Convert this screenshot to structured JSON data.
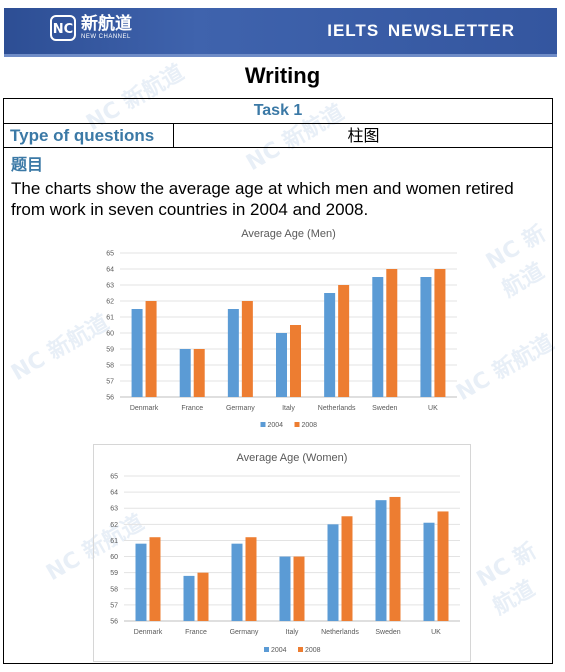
{
  "header": {
    "logo_badge": "NC",
    "logo_cn": "新航道",
    "logo_en": "NEW CHANNEL",
    "title": "IELTS NEWSLETTER"
  },
  "doc_title": "Writing",
  "task": {
    "label": "Task 1",
    "type_label": "Type of questions",
    "type_value": "柱图",
    "topic_label": "题目",
    "prompt": "The charts show the average age at which men and women retired from work in seven countries in 2004 and 2008."
  },
  "colors": {
    "series_2004": "#5b9bd5",
    "series_2008": "#ed7d31",
    "accent": "#3b79a6",
    "banner": "#34569f"
  },
  "chart_data": [
    {
      "type": "bar",
      "title": "Average Age (Men)",
      "categories": [
        "Denmark",
        "France",
        "Germany",
        "Italy",
        "Netherlands",
        "Sweden",
        "UK"
      ],
      "series": [
        {
          "name": "2004",
          "values": [
            61.5,
            59,
            61.5,
            60,
            62.5,
            63.5,
            63.5
          ]
        },
        {
          "name": "2008",
          "values": [
            62,
            59,
            62,
            60.5,
            63,
            64,
            64
          ]
        }
      ],
      "ylim": [
        56,
        65
      ],
      "yticks": [
        56,
        57,
        58,
        59,
        60,
        61,
        62,
        63,
        64,
        65
      ],
      "grid": true,
      "legend": "bottom"
    },
    {
      "type": "bar",
      "title": "Average Age (Women)",
      "categories": [
        "Denmark",
        "France",
        "Germany",
        "Italy",
        "Netherlands",
        "Sweden",
        "UK"
      ],
      "series": [
        {
          "name": "2004",
          "values": [
            60.8,
            58.8,
            60.8,
            60,
            62,
            63.5,
            62.1
          ]
        },
        {
          "name": "2008",
          "values": [
            61.2,
            59,
            61.2,
            60,
            62.5,
            63.7,
            62.8
          ]
        }
      ],
      "ylim": [
        56,
        65
      ],
      "yticks": [
        56,
        57,
        58,
        59,
        60,
        61,
        62,
        63,
        64,
        65
      ],
      "grid": true,
      "legend": "bottom"
    }
  ]
}
